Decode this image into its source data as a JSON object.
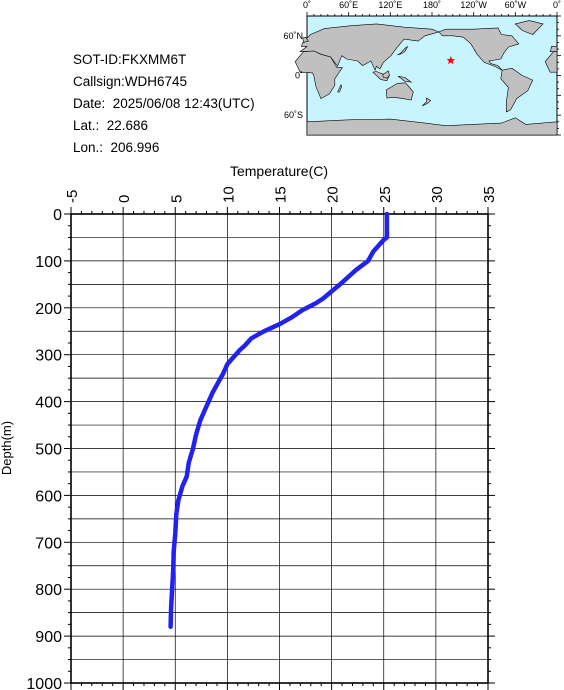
{
  "info": {
    "sot_id": "SOT-ID:FKXMM6T",
    "callsign": "Callsign:WDH6745",
    "date": "Date:  2025/06/08 12:43(UTC)",
    "lat": "Lat.:  22.686",
    "lon": "Lon.:  206.996"
  },
  "map": {
    "lon_labels": [
      "0˚",
      "60˚E",
      "120˚E",
      "180˚",
      "120˚W",
      "60˚W",
      "0˚"
    ],
    "lat_labels": [
      "60˚N",
      "0˚",
      "60˚S"
    ],
    "marker": {
      "lat": 22.686,
      "lon": 206.996
    },
    "colors": {
      "ocean": "#c8f4ff",
      "land": "#c0c0c0",
      "marker": "#ff0000"
    }
  },
  "chart_data": {
    "type": "line",
    "xlabel": "Temperature(C)",
    "ylabel": "Depth(m)",
    "xlim": [
      -5,
      35
    ],
    "ylim": [
      1000,
      0
    ],
    "x_ticks": [
      "-5",
      "0",
      "5",
      "10",
      "15",
      "20",
      "25",
      "30",
      "35"
    ],
    "y_ticks": [
      "0",
      "100",
      "200",
      "300",
      "400",
      "500",
      "600",
      "700",
      "800",
      "900",
      "1000"
    ],
    "grid": true,
    "line_color": "#2222ee",
    "series": [
      {
        "x": [
          25.3,
          25.3,
          25.0,
          24.0,
          23.5,
          22.6,
          22.3,
          21.8,
          20.8,
          20.0,
          19.2,
          18.5,
          17.2,
          16.2,
          15.0,
          13.5,
          12.3,
          11.7,
          11.2,
          10.4,
          10.0,
          9.6,
          9.1,
          8.6,
          8.2,
          7.8,
          7.4,
          7.0,
          6.7,
          6.3,
          6.1,
          5.7,
          5.3,
          5.1,
          5.0,
          4.85,
          4.8,
          4.7,
          4.6,
          4.55
        ],
        "y": [
          0,
          50,
          55,
          80,
          100,
          115,
          120,
          130,
          150,
          165,
          180,
          190,
          205,
          220,
          235,
          250,
          265,
          280,
          290,
          310,
          320,
          340,
          360,
          380,
          400,
          420,
          440,
          470,
          500,
          530,
          560,
          580,
          610,
          640,
          680,
          720,
          760,
          800,
          840,
          880
        ]
      }
    ]
  }
}
